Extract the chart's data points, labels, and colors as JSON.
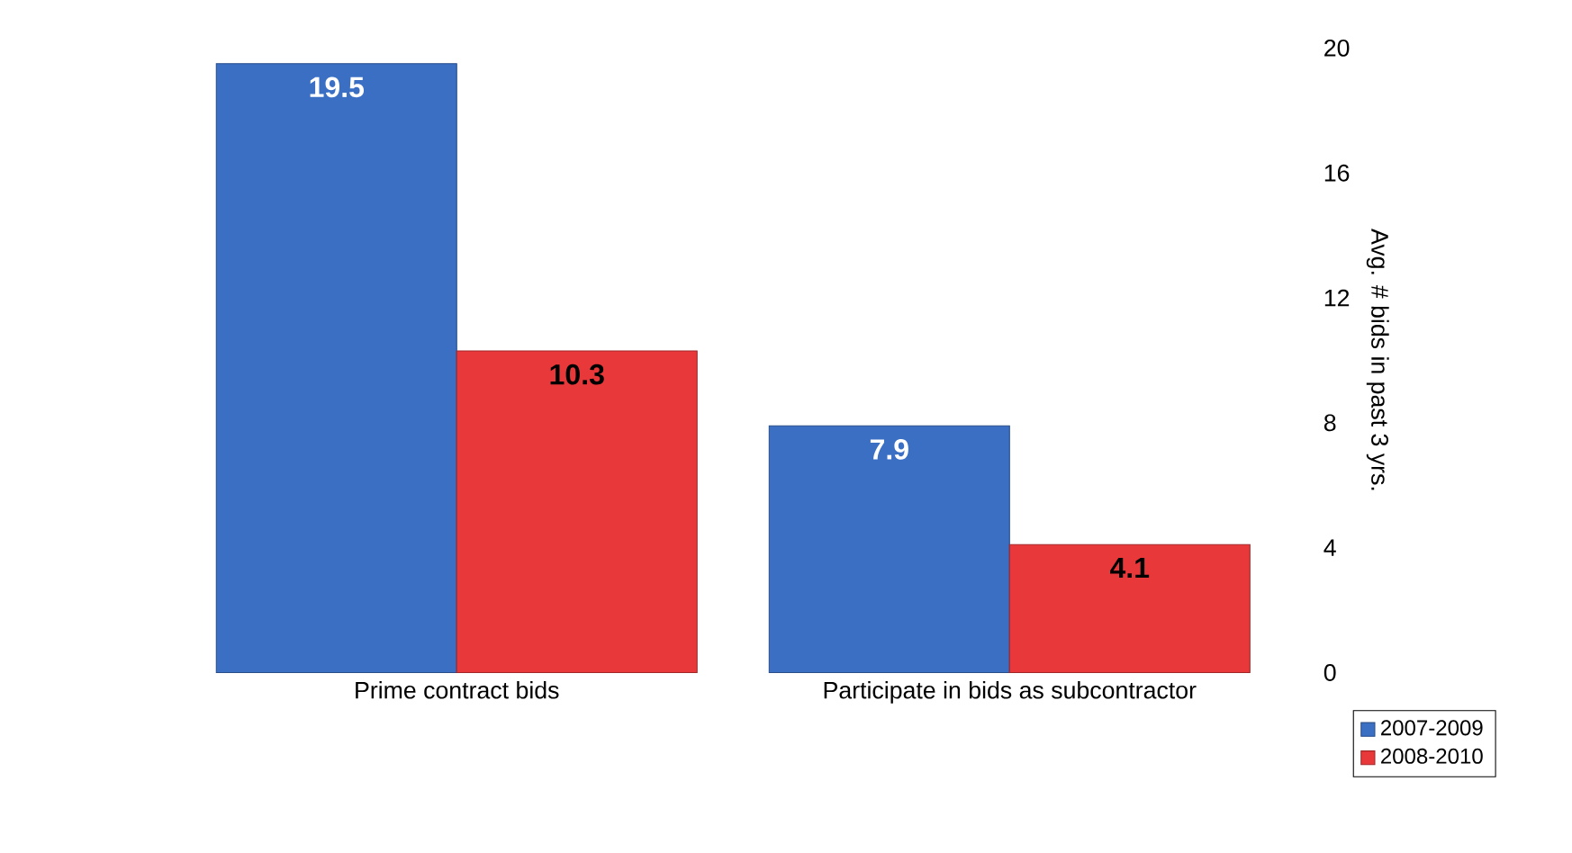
{
  "chart_data": {
    "type": "bar",
    "categories": [
      "Prime contract bids",
      "Participate in bids as subcontractor"
    ],
    "series": [
      {
        "name": "2007-2009",
        "color": "#3a6fc4",
        "values": [
          19.5,
          7.9
        ]
      },
      {
        "name": "2008-2010",
        "color": "#e8383a",
        "values": [
          10.3,
          4.1
        ]
      }
    ],
    "ylabel": "Avg. # bids in past 3 yrs.",
    "ylim": [
      0,
      20
    ],
    "yticks": [
      0,
      4,
      8,
      12,
      16,
      20
    ],
    "data_labels": true,
    "legend": "bottom right"
  }
}
